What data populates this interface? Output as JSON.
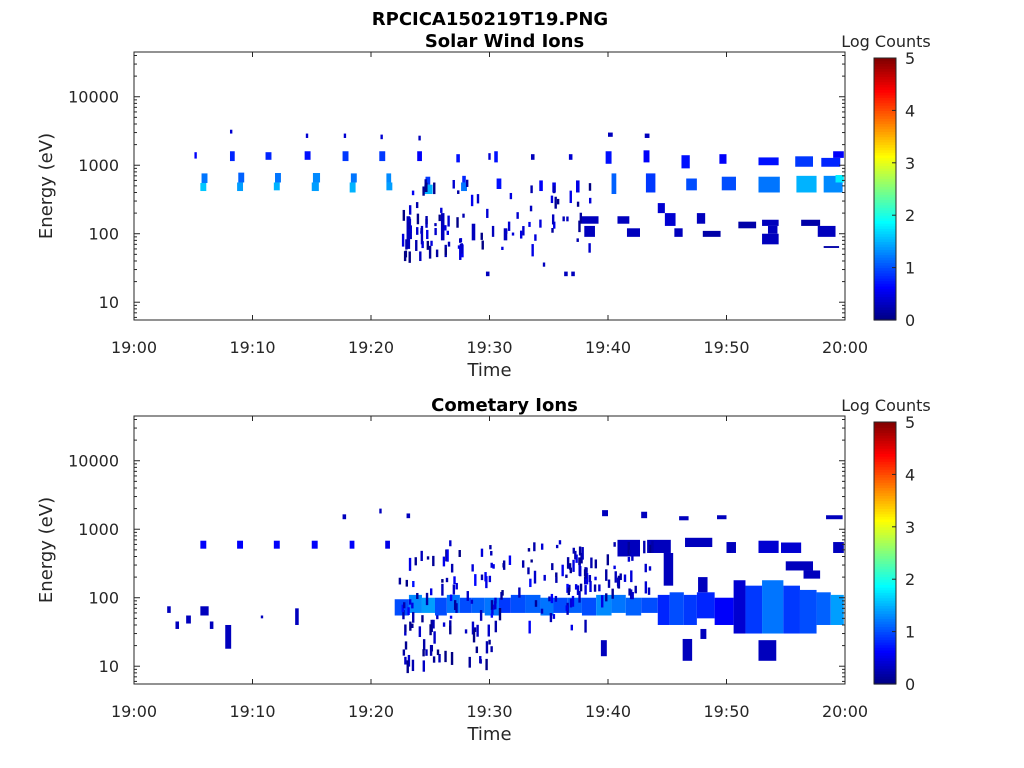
{
  "figure": {
    "title": "RPCICA150219T19.PNG"
  },
  "chart_data": [
    {
      "type": "heatmap",
      "title": "Solar Wind Ions",
      "xlabel": "Time",
      "ylabel": "Energy (eV)",
      "xticks": [
        "19:00",
        "19:10",
        "19:20",
        "19:30",
        "19:40",
        "19:50",
        "20:00"
      ],
      "xlim": [
        0,
        60
      ],
      "yticks": [
        10,
        100,
        1000,
        10000
      ],
      "ytick_labels": [
        "10",
        "100",
        "1000",
        "10000"
      ],
      "ylim": [
        5.5,
        45000
      ],
      "yscale": "log",
      "colorbar": {
        "label": "Log Counts",
        "range": [
          0,
          5
        ],
        "ticks": [
          "0",
          "1",
          "2",
          "3",
          "4",
          "5"
        ],
        "colormap": "jet"
      },
      "cells": [
        [
          5.1,
          5.3,
          1250,
          1550,
          0.6
        ],
        [
          5.6,
          6.1,
          420,
          550,
          1.6
        ],
        [
          5.7,
          6.2,
          550,
          760,
          1.2
        ],
        [
          8.1,
          8.5,
          1150,
          1600,
          0.8
        ],
        [
          8.1,
          8.3,
          2900,
          3300,
          0.4
        ],
        [
          8.7,
          9.2,
          420,
          560,
          1.4
        ],
        [
          8.8,
          9.3,
          560,
          780,
          1.1
        ],
        [
          11.1,
          11.6,
          1200,
          1550,
          0.8
        ],
        [
          11.8,
          12.3,
          430,
          560,
          1.5
        ],
        [
          11.9,
          12.4,
          560,
          770,
          1.2
        ],
        [
          14.4,
          14.9,
          1200,
          1600,
          0.7
        ],
        [
          14.5,
          14.7,
          2500,
          2900,
          0.4
        ],
        [
          15.0,
          15.6,
          420,
          560,
          1.4
        ],
        [
          15.1,
          15.7,
          560,
          770,
          1.3
        ],
        [
          17.6,
          18.1,
          1150,
          1600,
          0.9
        ],
        [
          17.7,
          17.9,
          2500,
          2900,
          0.4
        ],
        [
          18.2,
          18.7,
          400,
          560,
          1.5
        ],
        [
          18.3,
          18.8,
          560,
          760,
          1.2
        ],
        [
          20.7,
          21.2,
          1150,
          1600,
          0.9
        ],
        [
          20.8,
          21.0,
          2400,
          2800,
          0.4
        ],
        [
          21.3,
          21.8,
          430,
          560,
          1.4
        ],
        [
          21.3,
          21.7,
          560,
          760,
          1.3
        ],
        [
          23.9,
          24.3,
          1150,
          1600,
          0.6
        ],
        [
          24.0,
          24.2,
          2300,
          2700,
          0.3
        ],
        [
          24.5,
          25.2,
          380,
          520,
          1.5
        ],
        [
          24.6,
          25.0,
          520,
          680,
          0.9
        ],
        [
          23.0,
          23.3,
          60,
          180,
          0.3
        ],
        [
          24.2,
          24.4,
          70,
          130,
          0.3
        ],
        [
          25.9,
          26.2,
          80,
          200,
          0.3
        ],
        [
          27.2,
          27.5,
          1100,
          1450,
          0.7
        ],
        [
          27.6,
          28.1,
          420,
          560,
          1.2
        ],
        [
          27.7,
          28.0,
          560,
          700,
          0.8
        ],
        [
          29.9,
          30.1,
          1200,
          1500,
          0.4
        ],
        [
          30.4,
          30.7,
          1100,
          1600,
          0.7
        ],
        [
          30.6,
          31.0,
          450,
          640,
          0.7
        ],
        [
          28.5,
          28.8,
          80,
          140,
          0.3
        ],
        [
          30.2,
          30.4,
          90,
          130,
          0.3
        ],
        [
          31.2,
          31.5,
          80,
          120,
          0.3
        ],
        [
          33.5,
          33.8,
          1200,
          1450,
          0.3
        ],
        [
          34.2,
          34.5,
          420,
          600,
          0.6
        ],
        [
          35.3,
          35.6,
          400,
          560,
          0.5
        ],
        [
          36.7,
          37.0,
          1200,
          1450,
          0.4
        ],
        [
          37.3,
          37.6,
          400,
          600,
          0.5
        ],
        [
          39.8,
          40.3,
          1050,
          1600,
          0.7
        ],
        [
          40.3,
          40.7,
          380,
          760,
          1.1
        ],
        [
          40.0,
          40.4,
          2600,
          3000,
          0.3
        ],
        [
          43.0,
          43.5,
          1100,
          1650,
          0.6
        ],
        [
          43.2,
          44.0,
          400,
          760,
          0.9
        ],
        [
          43.1,
          43.5,
          2500,
          2900,
          0.3
        ],
        [
          46.2,
          46.9,
          900,
          1400,
          0.7
        ],
        [
          46.6,
          47.5,
          430,
          640,
          1.0
        ],
        [
          49.4,
          50.0,
          1050,
          1450,
          0.6
        ],
        [
          49.6,
          50.8,
          430,
          680,
          1.0
        ],
        [
          52.7,
          54.4,
          1000,
          1300,
          0.7
        ],
        [
          52.7,
          54.5,
          400,
          680,
          1.2
        ],
        [
          55.8,
          57.3,
          950,
          1350,
          0.9
        ],
        [
          55.9,
          57.6,
          400,
          700,
          1.5
        ],
        [
          58.0,
          59.6,
          950,
          1280,
          0.8
        ],
        [
          58.2,
          59.8,
          400,
          700,
          1.3
        ],
        [
          59.0,
          59.9,
          1280,
          1600,
          0.6
        ],
        [
          59.2,
          59.9,
          560,
          720,
          1.8
        ],
        [
          37.8,
          39.2,
          140,
          180,
          0.3
        ],
        [
          38.0,
          38.9,
          90,
          130,
          0.3
        ],
        [
          40.8,
          41.8,
          140,
          180,
          0.3
        ],
        [
          41.6,
          42.7,
          90,
          120,
          0.3
        ],
        [
          44.2,
          44.8,
          200,
          280,
          0.4
        ],
        [
          44.8,
          45.7,
          130,
          200,
          0.4
        ],
        [
          45.6,
          46.3,
          90,
          120,
          0.3
        ],
        [
          47.5,
          48.2,
          140,
          200,
          0.3
        ],
        [
          48.0,
          49.5,
          90,
          110,
          0.2
        ],
        [
          51.0,
          52.5,
          120,
          150,
          0.2
        ],
        [
          53.0,
          54.4,
          130,
          160,
          0.3
        ],
        [
          53.0,
          54.4,
          70,
          100,
          0.3
        ],
        [
          53.5,
          54.3,
          100,
          130,
          0.3
        ],
        [
          56.3,
          57.9,
          130,
          160,
          0.2
        ],
        [
          57.7,
          59.2,
          90,
          130,
          0.3
        ],
        [
          58.2,
          59.5,
          62,
          66,
          0.2
        ],
        [
          29.7,
          30.0,
          24,
          28,
          0.3
        ],
        [
          34.5,
          34.7,
          33,
          38,
          0.3
        ],
        [
          36.3,
          36.6,
          24,
          28,
          0.3
        ],
        [
          36.9,
          37.2,
          24,
          28,
          0.3
        ]
      ],
      "scatter_ranges": [
        [
          22.2,
          38.4,
          60,
          640,
          60,
          0.0,
          0.6
        ],
        [
          22.6,
          27.8,
          55,
          200,
          30,
          0.0,
          0.5
        ]
      ]
    },
    {
      "type": "heatmap",
      "title": "Cometary Ions",
      "xlabel": "Time",
      "ylabel": "Energy (eV)",
      "xticks": [
        "19:00",
        "19:10",
        "19:20",
        "19:30",
        "19:40",
        "19:50",
        "20:00"
      ],
      "xlim": [
        0,
        60
      ],
      "yticks": [
        10,
        100,
        1000,
        10000
      ],
      "ytick_labels": [
        "10",
        "100",
        "1000",
        "10000"
      ],
      "ylim": [
        5.5,
        45000
      ],
      "yscale": "log",
      "colorbar": {
        "label": "Log Counts",
        "range": [
          0,
          5
        ],
        "ticks": [
          "0",
          "1",
          "2",
          "3",
          "4",
          "5"
        ],
        "colormap": "jet"
      },
      "cells": [
        [
          5.6,
          6.1,
          520,
          680,
          0.6
        ],
        [
          8.7,
          9.2,
          520,
          680,
          0.6
        ],
        [
          11.8,
          12.3,
          520,
          680,
          0.6
        ],
        [
          15.0,
          15.5,
          520,
          680,
          0.6
        ],
        [
          18.2,
          18.6,
          520,
          680,
          0.6
        ],
        [
          21.2,
          21.6,
          520,
          680,
          0.5
        ],
        [
          17.6,
          17.9,
          1400,
          1650,
          0.3
        ],
        [
          20.7,
          20.9,
          1700,
          2000,
          0.3
        ],
        [
          23.0,
          23.3,
          1450,
          1700,
          0.3
        ],
        [
          2.8,
          3.1,
          60,
          75,
          0.3
        ],
        [
          3.5,
          3.8,
          35,
          45,
          0.3
        ],
        [
          4.4,
          4.8,
          42,
          55,
          0.3
        ],
        [
          5.6,
          6.3,
          55,
          75,
          0.3
        ],
        [
          6.4,
          6.7,
          35,
          45,
          0.3
        ],
        [
          7.7,
          8.2,
          18,
          40,
          0.3
        ],
        [
          10.7,
          10.9,
          50,
          55,
          0.3
        ],
        [
          13.6,
          13.9,
          40,
          70,
          0.3
        ],
        [
          22.0,
          23.2,
          55,
          95,
          1.0
        ],
        [
          23.2,
          24.3,
          60,
          110,
          1.3
        ],
        [
          24.3,
          25.4,
          60,
          100,
          1.4
        ],
        [
          25.4,
          26.4,
          55,
          100,
          1.0
        ],
        [
          26.4,
          27.5,
          60,
          110,
          1.2
        ],
        [
          27.5,
          28.5,
          60,
          100,
          1.0
        ],
        [
          28.5,
          29.6,
          60,
          100,
          1.1
        ],
        [
          29.6,
          30.8,
          55,
          100,
          1.2
        ],
        [
          30.8,
          31.8,
          60,
          100,
          0.9
        ],
        [
          31.8,
          33.0,
          60,
          110,
          1.0
        ],
        [
          33.0,
          34.3,
          60,
          110,
          1.1
        ],
        [
          34.3,
          35.4,
          55,
          100,
          1.2
        ],
        [
          35.4,
          36.6,
          60,
          100,
          1.0
        ],
        [
          36.6,
          37.8,
          60,
          100,
          1.1
        ],
        [
          37.8,
          39.0,
          55,
          100,
          1.0
        ],
        [
          39.0,
          40.3,
          55,
          110,
          1.3
        ],
        [
          40.3,
          41.5,
          60,
          110,
          1.2
        ],
        [
          41.5,
          42.8,
          55,
          100,
          1.1
        ],
        [
          42.8,
          44.2,
          60,
          100,
          1.0
        ],
        [
          44.2,
          45.2,
          40,
          110,
          0.8
        ],
        [
          45.2,
          46.4,
          40,
          120,
          1.0
        ],
        [
          46.4,
          47.5,
          40,
          110,
          0.9
        ],
        [
          47.5,
          49.0,
          50,
          120,
          0.8
        ],
        [
          49.0,
          50.6,
          40,
          100,
          0.6
        ],
        [
          50.6,
          51.6,
          30,
          180,
          0.4
        ],
        [
          51.6,
          53.0,
          30,
          150,
          0.9
        ],
        [
          53.0,
          54.8,
          30,
          180,
          1.2
        ],
        [
          54.8,
          56.2,
          30,
          150,
          0.9
        ],
        [
          56.2,
          57.6,
          30,
          130,
          1.0
        ],
        [
          57.6,
          58.8,
          40,
          120,
          1.1
        ],
        [
          58.8,
          59.9,
          40,
          110,
          1.4
        ],
        [
          40.8,
          42.7,
          400,
          700,
          0.3
        ],
        [
          43.3,
          45.3,
          450,
          700,
          0.3
        ],
        [
          44.7,
          45.5,
          150,
          450,
          0.3
        ],
        [
          46.5,
          48.8,
          550,
          750,
          0.3
        ],
        [
          47.6,
          48.4,
          120,
          200,
          0.3
        ],
        [
          50.0,
          50.8,
          450,
          650,
          0.3
        ],
        [
          52.7,
          54.4,
          450,
          680,
          0.4
        ],
        [
          54.6,
          56.3,
          450,
          640,
          0.4
        ],
        [
          55.0,
          57.3,
          250,
          340,
          0.3
        ],
        [
          56.5,
          57.9,
          190,
          250,
          0.3
        ],
        [
          59.0,
          59.9,
          450,
          650,
          0.3
        ],
        [
          46.3,
          47.1,
          12,
          25,
          0.3
        ],
        [
          52.7,
          54.2,
          12,
          24,
          0.3
        ],
        [
          39.4,
          39.9,
          14,
          24,
          0.3
        ],
        [
          47.8,
          48.3,
          25,
          35,
          0.3
        ],
        [
          39.5,
          40.0,
          1550,
          1900,
          0.3
        ],
        [
          42.8,
          43.3,
          1450,
          1800,
          0.3
        ],
        [
          46.0,
          46.8,
          1350,
          1550,
          0.3
        ],
        [
          49.2,
          50.0,
          1400,
          1600,
          0.3
        ],
        [
          58.4,
          59.8,
          1400,
          1600,
          0.3
        ]
      ],
      "scatter_ranges": [
        [
          22.2,
          38.5,
          40,
          700,
          110,
          0.0,
          0.7
        ],
        [
          22.5,
          30.5,
          12,
          60,
          40,
          0.0,
          0.4
        ],
        [
          36.5,
          44.0,
          100,
          700,
          50,
          0.0,
          0.5
        ]
      ]
    }
  ]
}
